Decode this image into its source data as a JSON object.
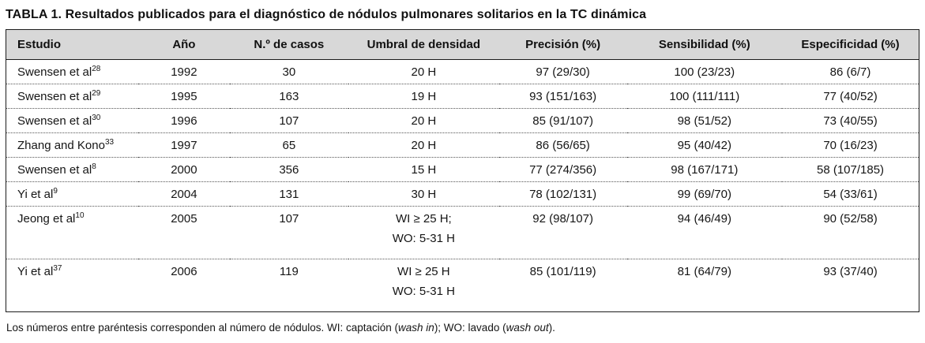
{
  "title": "TABLA 1. Resultados publicados para el diagnóstico de nódulos pulmonares solitarios en la TC dinámica",
  "table": {
    "columns": [
      "Estudio",
      "Año",
      "N.º de casos",
      "Umbral de densidad",
      "Precisión (%)",
      "Sensibilidad (%)",
      "Especificidad (%)"
    ],
    "rows": [
      {
        "estudio": "Swensen et al",
        "ref": "28",
        "ano": "1992",
        "casos": "30",
        "umbral1": "20 H",
        "precision": "97 (29/30)",
        "sensibilidad": "100 (23/23)",
        "especificidad": "86 (6/7)"
      },
      {
        "estudio": "Swensen et al",
        "ref": "29",
        "ano": "1995",
        "casos": "163",
        "umbral1": "19 H",
        "precision": "93 (151/163)",
        "sensibilidad": "100 (111/111)",
        "especificidad": "77 (40/52)"
      },
      {
        "estudio": "Swensen et al",
        "ref": "30",
        "ano": "1996",
        "casos": "107",
        "umbral1": "20 H",
        "precision": "85 (91/107)",
        "sensibilidad": "98 (51/52)",
        "especificidad": "73 (40/55)"
      },
      {
        "estudio": "Zhang and Kono",
        "ref": "33",
        "ano": "1997",
        "casos": "65",
        "umbral1": "20 H",
        "precision": "86 (56/65)",
        "sensibilidad": "95 (40/42)",
        "especificidad": "70 (16/23)"
      },
      {
        "estudio": "Swensen et al",
        "ref": "8",
        "ano": "2000",
        "casos": "356",
        "umbral1": "15 H",
        "precision": "77 (274/356)",
        "sensibilidad": "98 (167/171)",
        "especificidad": "58 (107/185)"
      },
      {
        "estudio": "Yi et al",
        "ref": "9",
        "ano": "2004",
        "casos": "131",
        "umbral1": "30 H",
        "precision": "78 (102/131)",
        "sensibilidad": "99 (69/70)",
        "especificidad": "54 (33/61)"
      },
      {
        "estudio": "Jeong et al",
        "ref": "10",
        "ano": "2005",
        "casos": "107",
        "umbral1": "WI ≥ 25 H;",
        "umbral2": "WO: 5-31 H",
        "precision": "92 (98/107)",
        "sensibilidad": "94 (46/49)",
        "especificidad": "90 (52/58)"
      },
      {
        "estudio": "Yi et al",
        "ref": "37",
        "ano": "2006",
        "casos": "119",
        "umbral1": "WI ≥ 25 H",
        "umbral2": "WO: 5-31 H",
        "precision": "85 (101/119)",
        "sensibilidad": "81 (64/79)",
        "especificidad": "93 (37/40)"
      }
    ]
  },
  "footnote": {
    "part1": "Los números entre paréntesis corresponden al número de nódulos. WI: captación (",
    "italic1": "wash in",
    "part2": "); WO: lavado (",
    "italic2": "wash out",
    "part3": ")."
  },
  "colors": {
    "header_background": "#d8d8d8",
    "border": "#1c1c1c",
    "text": "#151515"
  }
}
